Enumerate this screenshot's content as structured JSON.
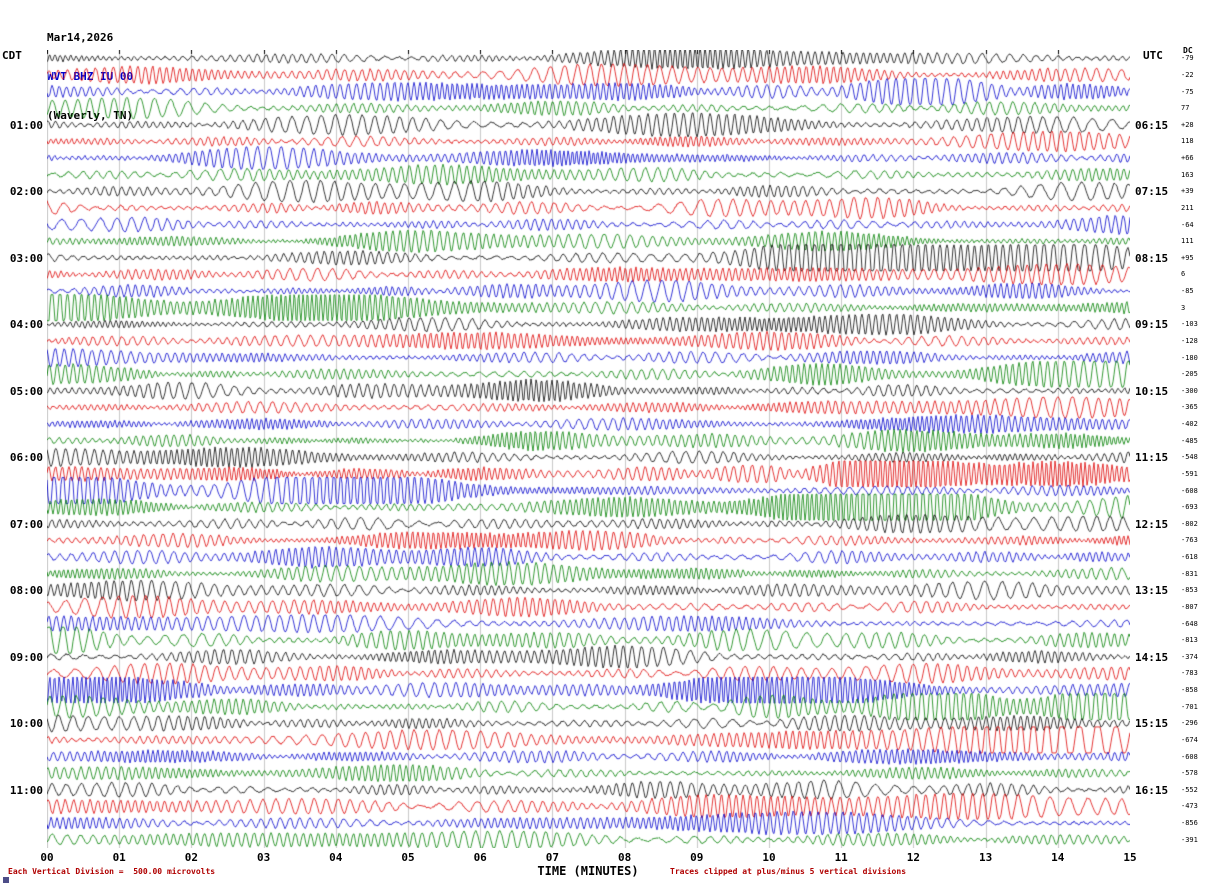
{
  "header": {
    "date": "Mar14,2026",
    "station": "WVT BHZ IU 00",
    "location": "(Waverly, TN)"
  },
  "timezones": {
    "left": "CDT",
    "right": "UTC"
  },
  "dc_column": {
    "label": "DC",
    "values": [
      "-79",
      "-22",
      "-75",
      "77",
      "+28",
      "118",
      "+66",
      "163",
      "+39",
      "211",
      "-64",
      "111",
      "+95",
      "6",
      "-85",
      "3",
      "-103",
      "-128",
      "-180",
      "-205",
      "-300",
      "-365",
      "-402",
      "-485",
      "-548",
      "-591",
      "-608",
      "-693",
      "-802",
      "-763",
      "-618",
      "-831",
      "-853",
      "-807",
      "-648",
      "-813",
      "-374",
      "-783",
      "-858",
      "-701",
      "-296",
      "-674",
      "-608",
      "-578",
      "-552",
      "-473",
      "-856",
      "-391"
    ]
  },
  "footer": {
    "left": "Each Vertical Division =  500.00 microvolts",
    "right": "Traces clipped at plus/minus 5 vertical divisions"
  },
  "chart_data": {
    "type": "line",
    "subtype": "seismogram-helicorder",
    "title": "WVT BHZ IU 00 (Waverly, TN) Mar14,2026",
    "xlabel": "TIME (MINUTES)",
    "x_ticks": [
      "00",
      "01",
      "02",
      "03",
      "04",
      "05",
      "06",
      "07",
      "08",
      "09",
      "10",
      "11",
      "12",
      "13",
      "14",
      "15"
    ],
    "x_range_minutes": [
      0,
      15
    ],
    "rows": 48,
    "minutes_per_row": 15,
    "label_every_n_rows": 4,
    "left_time_labels": [
      "01:00",
      "02:00",
      "03:00",
      "04:00",
      "05:00",
      "06:00",
      "07:00",
      "08:00",
      "09:00",
      "10:00",
      "11:00"
    ],
    "right_time_labels": [
      "06:15",
      "07:15",
      "08:15",
      "09:15",
      "10:15",
      "11:15",
      "12:15",
      "13:15",
      "14:15",
      "15:15",
      "16:15"
    ],
    "first_row_start_local": "00:00",
    "trace_colors": [
      "#000000",
      "#dd0000",
      "#0000cc",
      "#008000"
    ],
    "grid": "vertical line at every minute",
    "vertical_division_microvolts": 500.0,
    "clip_divisions": 5,
    "dc_offsets": [
      -79,
      -22,
      -75,
      77,
      28,
      118,
      66,
      163,
      39,
      211,
      -64,
      111,
      95,
      6,
      -85,
      3,
      -103,
      -128,
      -180,
      -205,
      -300,
      -365,
      -402,
      -485,
      -548,
      -591,
      -608,
      -693,
      -802,
      -763,
      -618,
      -831,
      -853,
      -807,
      -648,
      -813,
      -374,
      -783,
      -858,
      -701,
      -296,
      -674,
      -608,
      -578,
      -552,
      -473,
      -856,
      -391
    ],
    "description": "Continuous broadband seismic noise; 48 traces of 15 minutes each, colors cycling black/red/blue/green; waveform sample values not recoverable from raster, rendered as deterministic pseudo-random oscillation."
  }
}
